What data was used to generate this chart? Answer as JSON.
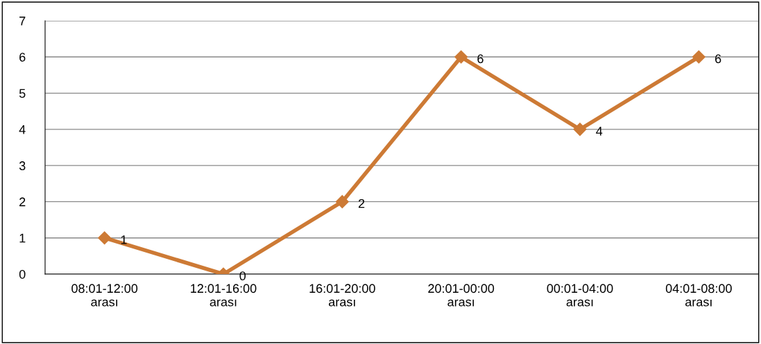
{
  "chart_data": {
    "type": "line",
    "categories": [
      "08:01-12:00\narası",
      "12:01-16:00\narası",
      "16:01-20:00\narası",
      "20:01-00:00\narası",
      "00:01-04:00\narası",
      "04:01-08:00\narası"
    ],
    "series": [
      {
        "color": "#cd7a35",
        "values": [
          1,
          0,
          2,
          6,
          4,
          6
        ]
      }
    ],
    "ylim": [
      0,
      7
    ],
    "yticks": [
      0,
      1,
      2,
      3,
      4,
      5,
      6,
      7
    ],
    "grid": "y",
    "marker": "diamond",
    "line_style": "solid",
    "data_labels": true
  }
}
